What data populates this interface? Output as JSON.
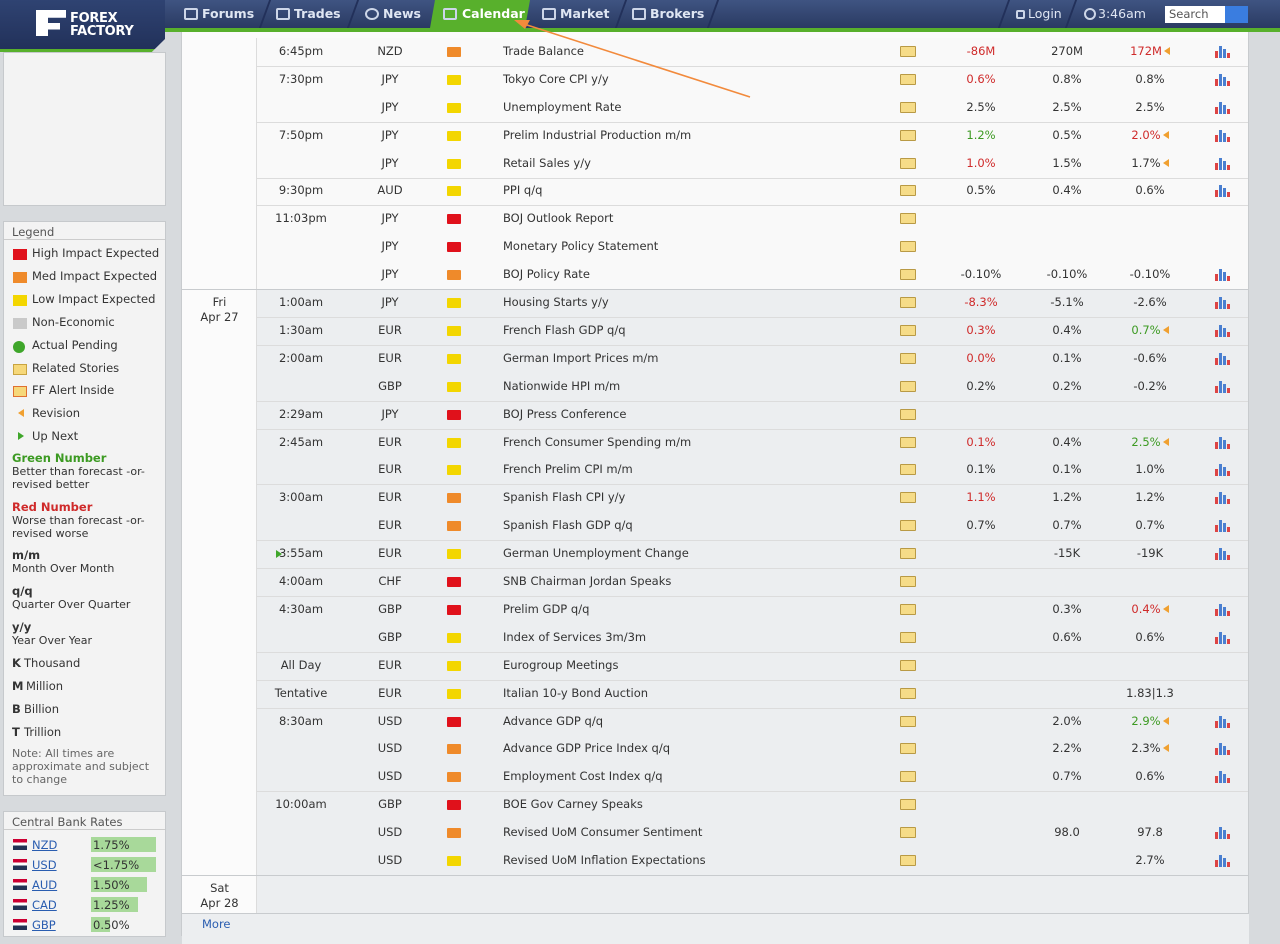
{
  "header": {
    "logo": [
      "FOREX",
      "FACTORY"
    ],
    "nav": [
      "Forums",
      "Trades",
      "News",
      "Calendar",
      "Market",
      "Brokers"
    ],
    "login": "Login",
    "time": "3:46am",
    "search": "Search"
  },
  "legend": {
    "title": "Legend",
    "items": [
      "High Impact Expected",
      "Med Impact Expected",
      "Low Impact Expected",
      "Non-Economic",
      "Actual Pending",
      "Related Stories",
      "FF Alert Inside",
      "Revision",
      "Up Next"
    ],
    "notes": [
      {
        "term": "Green Number",
        "text": "Better than forecast -or- revised better"
      },
      {
        "term": "Red Number",
        "text": "Worse than forecast -or- revised worse"
      },
      {
        "term": "m/m",
        "text": "Month Over Month"
      },
      {
        "term": "q/q",
        "text": "Quarter Over Quarter"
      },
      {
        "term": "y/y",
        "text": "Year Over Year"
      }
    ],
    "units": [
      {
        "abbr": "K",
        "text": "Thousand"
      },
      {
        "abbr": "M",
        "text": "Million"
      },
      {
        "abbr": "B",
        "text": "Billion"
      },
      {
        "abbr": "T",
        "text": "Trillion"
      }
    ],
    "note": "Note: All times are approximate and subject to change"
  },
  "central_bank_rates": {
    "title": "Central Bank Rates",
    "rates": [
      {
        "currency": "NZD",
        "value": 1.75,
        "label": "1.75%"
      },
      {
        "currency": "USD",
        "value": 1.75,
        "label": "<1.75%"
      },
      {
        "currency": "AUD",
        "value": 1.5,
        "label": "1.50%"
      },
      {
        "currency": "CAD",
        "value": 1.25,
        "label": "1.25%"
      },
      {
        "currency": "GBP",
        "value": 0.5,
        "label": "0.50%"
      }
    ]
  },
  "calendar": {
    "more": "More",
    "groups": [
      {
        "rows": [
          {
            "time": "6:45pm",
            "currency": "NZD",
            "impact": "medium",
            "event": "Trade Balance",
            "actual": "-86M",
            "actual_color": "red",
            "forecast": "270M",
            "previous": "172M",
            "previous_color": "red",
            "revised": true,
            "chart": true
          },
          {
            "time": "7:30pm",
            "currency": "JPY",
            "impact": "low",
            "event": "Tokyo Core CPI y/y",
            "actual": "0.6%",
            "actual_color": "red",
            "forecast": "0.8%",
            "previous": "0.8%",
            "chart": true
          },
          {
            "currency": "JPY",
            "impact": "low",
            "event": "Unemployment Rate",
            "actual": "2.5%",
            "forecast": "2.5%",
            "previous": "2.5%",
            "chart": true
          },
          {
            "time": "7:50pm",
            "currency": "JPY",
            "impact": "low",
            "event": "Prelim Industrial Production m/m",
            "actual": "1.2%",
            "actual_color": "green",
            "forecast": "0.5%",
            "previous": "2.0%",
            "previous_color": "red",
            "revised": true,
            "chart": true
          },
          {
            "currency": "JPY",
            "impact": "low",
            "event": "Retail Sales y/y",
            "actual": "1.0%",
            "actual_color": "red",
            "forecast": "1.5%",
            "previous": "1.7%",
            "revised": true,
            "chart": true
          },
          {
            "time": "9:30pm",
            "currency": "AUD",
            "impact": "low",
            "event": "PPI q/q",
            "actual": "0.5%",
            "forecast": "0.4%",
            "previous": "0.6%",
            "chart": true
          },
          {
            "time": "11:03pm",
            "currency": "JPY",
            "impact": "high",
            "event": "BOJ Outlook Report",
            "chart": false
          },
          {
            "currency": "JPY",
            "impact": "high",
            "event": "Monetary Policy Statement",
            "chart": false
          },
          {
            "currency": "JPY",
            "impact": "medium",
            "event": "BOJ Policy Rate",
            "actual": "-0.10%",
            "forecast": "-0.10%",
            "previous": "-0.10%",
            "chart": true
          }
        ]
      },
      {
        "date": [
          "Fri",
          "Apr 27"
        ],
        "rows": [
          {
            "time": "1:00am",
            "currency": "JPY",
            "impact": "low",
            "event": "Housing Starts y/y",
            "actual": "-8.3%",
            "actual_color": "red",
            "forecast": "-5.1%",
            "previous": "-2.6%",
            "chart": true
          },
          {
            "time": "1:30am",
            "currency": "EUR",
            "impact": "low",
            "event": "French Flash GDP q/q",
            "actual": "0.3%",
            "actual_color": "red",
            "forecast": "0.4%",
            "previous": "0.7%",
            "previous_color": "green",
            "revised": true,
            "chart": true
          },
          {
            "time": "2:00am",
            "currency": "EUR",
            "impact": "low",
            "event": "German Import Prices m/m",
            "actual": "0.0%",
            "actual_color": "red",
            "forecast": "0.1%",
            "previous": "-0.6%",
            "chart": true
          },
          {
            "currency": "GBP",
            "impact": "low",
            "event": "Nationwide HPI m/m",
            "actual": "0.2%",
            "forecast": "0.2%",
            "previous": "-0.2%",
            "chart": true
          },
          {
            "time": "2:29am",
            "currency": "JPY",
            "impact": "high",
            "event": "BOJ Press Conference",
            "chart": false
          },
          {
            "time": "2:45am",
            "currency": "EUR",
            "impact": "low",
            "event": "French Consumer Spending m/m",
            "actual": "0.1%",
            "actual_color": "red",
            "forecast": "0.4%",
            "previous": "2.5%",
            "previous_color": "green",
            "revised": true,
            "chart": true
          },
          {
            "currency": "EUR",
            "impact": "low",
            "event": "French Prelim CPI m/m",
            "actual": "0.1%",
            "forecast": "0.1%",
            "previous": "1.0%",
            "chart": true
          },
          {
            "time": "3:00am",
            "currency": "EUR",
            "impact": "medium",
            "event": "Spanish Flash CPI y/y",
            "actual": "1.1%",
            "actual_color": "red",
            "forecast": "1.2%",
            "previous": "1.2%",
            "chart": true
          },
          {
            "currency": "EUR",
            "impact": "medium",
            "event": "Spanish Flash GDP q/q",
            "actual": "0.7%",
            "forecast": "0.7%",
            "previous": "0.7%",
            "chart": true
          },
          {
            "time": "3:55am",
            "up_next": true,
            "currency": "EUR",
            "impact": "low",
            "event": "German Unemployment Change",
            "forecast": "-15K",
            "previous": "-19K",
            "chart": true
          },
          {
            "time": "4:00am",
            "currency": "CHF",
            "impact": "high",
            "event": "SNB Chairman Jordan Speaks",
            "chart": false
          },
          {
            "time": "4:30am",
            "currency": "GBP",
            "impact": "high",
            "event": "Prelim GDP q/q",
            "forecast": "0.3%",
            "previous": "0.4%",
            "previous_color": "red",
            "revised": true,
            "chart": true
          },
          {
            "currency": "GBP",
            "impact": "low",
            "event": "Index of Services 3m/3m",
            "forecast": "0.6%",
            "previous": "0.6%",
            "chart": true
          },
          {
            "time": "All Day",
            "currency": "EUR",
            "impact": "low",
            "event": "Eurogroup Meetings",
            "chart": false
          },
          {
            "time": "Tentative",
            "currency": "EUR",
            "impact": "low",
            "event": "Italian 10-y Bond Auction",
            "previous": "1.83|1.3",
            "chart": false
          },
          {
            "time": "8:30am",
            "currency": "USD",
            "impact": "high",
            "event": "Advance GDP q/q",
            "forecast": "2.0%",
            "previous": "2.9%",
            "previous_color": "green",
            "revised": true,
            "chart": true
          },
          {
            "currency": "USD",
            "impact": "medium",
            "event": "Advance GDP Price Index q/q",
            "forecast": "2.2%",
            "previous": "2.3%",
            "revised": true,
            "chart": true
          },
          {
            "currency": "USD",
            "impact": "medium",
            "event": "Employment Cost Index q/q",
            "forecast": "0.7%",
            "previous": "0.6%",
            "chart": true
          },
          {
            "time": "10:00am",
            "currency": "GBP",
            "impact": "high",
            "event": "BOE Gov Carney Speaks",
            "chart": false
          },
          {
            "currency": "USD",
            "impact": "medium",
            "event": "Revised UoM Consumer Sentiment",
            "forecast": "98.0",
            "previous": "97.8",
            "chart": true
          },
          {
            "currency": "USD",
            "impact": "low",
            "event": "Revised UoM Inflation Expectations",
            "previous": "2.7%",
            "chart": true
          }
        ]
      },
      {
        "date": [
          "Sat",
          "Apr 28"
        ],
        "rows": []
      }
    ]
  }
}
